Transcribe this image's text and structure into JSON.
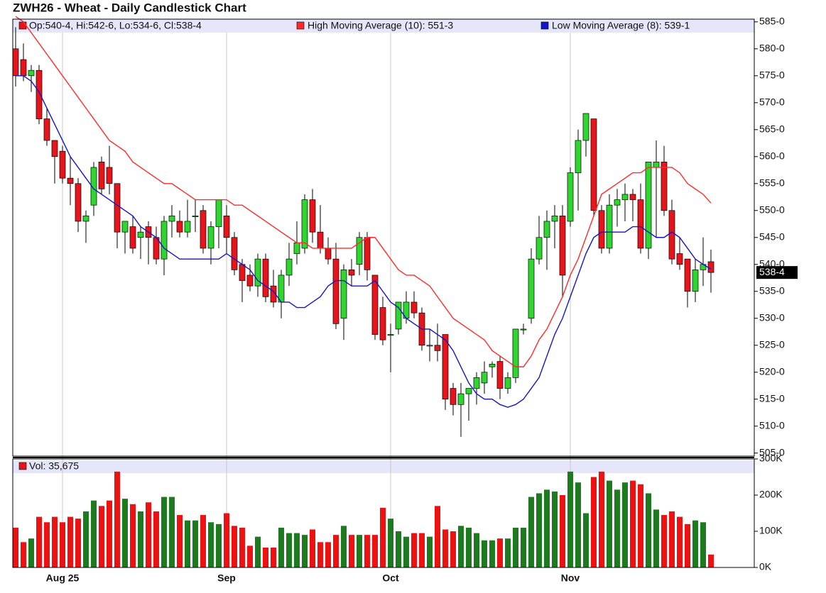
{
  "chart_data": {
    "type": "candlestick",
    "title": "ZWH26 - Wheat - Daily Candlestick Chart",
    "ohlc_label": "Op:540-4, Hi:542-6, Lo:534-6, Cl:538-4",
    "last_label": "538-4",
    "categories": [
      null,
      null,
      null,
      null,
      null,
      null,
      "Aug 25",
      null,
      null,
      null,
      null,
      null,
      null,
      null,
      null,
      null,
      null,
      null,
      null,
      null,
      null,
      null,
      null,
      null,
      null,
      null,
      null,
      "Sep",
      null,
      null,
      null,
      null,
      null,
      null,
      null,
      null,
      null,
      null,
      null,
      null,
      null,
      null,
      null,
      null,
      null,
      null,
      null,
      null,
      "Oct",
      null,
      null,
      null,
      null,
      null,
      null,
      null,
      null,
      null,
      null,
      null,
      null,
      null,
      null,
      null,
      null,
      null,
      null,
      null,
      null,
      null,
      null,
      "Nov",
      null,
      null,
      null,
      null,
      null,
      null,
      null,
      null,
      null,
      null,
      null,
      null,
      null,
      null,
      null,
      null,
      null,
      null
    ],
    "open": [
      580,
      578,
      575,
      576,
      567,
      563,
      561,
      556,
      555,
      548,
      551,
      559,
      558,
      555,
      546,
      547,
      545,
      547,
      545,
      541,
      548,
      548,
      546,
      549,
      550,
      543,
      547,
      549,
      545,
      540,
      538,
      536,
      541,
      536,
      533,
      538,
      542,
      543,
      552,
      546,
      543,
      541,
      530,
      539,
      540,
      545,
      538,
      532,
      527,
      528,
      530,
      533,
      531,
      525,
      525,
      527,
      517,
      514,
      516,
      517,
      518,
      521,
      522,
      517,
      519,
      528,
      530,
      541,
      545,
      548,
      549,
      548,
      557,
      563,
      567,
      550,
      543,
      551,
      552,
      553,
      552,
      543,
      558,
      559,
      550,
      542,
      541,
      535,
      539,
      540.5
    ],
    "high": [
      584,
      581,
      577,
      577,
      569,
      563,
      562,
      560,
      556,
      550,
      559,
      560,
      562,
      555,
      548,
      549,
      547,
      548,
      547,
      549,
      551,
      550,
      552,
      552,
      551,
      548,
      552,
      551,
      546,
      541,
      540,
      542,
      542,
      539,
      539,
      544,
      548,
      553,
      554,
      551,
      545,
      544,
      540,
      541,
      546,
      546,
      538,
      534,
      529,
      533,
      535,
      535,
      532,
      528,
      529,
      527,
      518,
      518,
      517,
      520,
      522,
      522,
      523,
      520,
      528,
      529,
      543,
      549,
      550,
      551,
      551,
      558,
      565,
      568,
      567,
      551,
      553,
      554,
      555,
      554,
      555,
      559,
      563,
      562,
      552,
      545,
      541,
      541,
      545,
      542.75
    ],
    "low": [
      573,
      574,
      572,
      566,
      562,
      555,
      555,
      551,
      546,
      544,
      549,
      553,
      553,
      543,
      542,
      542,
      541,
      540,
      540,
      538,
      545,
      545,
      545,
      546,
      542,
      540,
      543,
      542,
      538,
      533,
      535,
      534,
      533,
      532,
      530,
      536,
      540,
      542,
      544,
      542,
      540,
      528,
      526,
      536,
      538,
      537,
      526,
      525,
      520,
      527,
      529,
      530,
      524,
      522,
      522,
      513,
      512,
      508,
      511,
      514,
      516,
      519,
      515,
      516,
      518,
      527,
      529,
      540,
      539,
      543,
      534,
      547,
      550,
      560,
      549,
      542,
      542,
      547,
      548,
      548,
      542,
      541,
      545,
      549,
      540,
      539,
      532,
      533,
      536,
      534.75
    ],
    "close": [
      575,
      575,
      576,
      567,
      563,
      560,
      556,
      555,
      548,
      549,
      558,
      554,
      555,
      546,
      548,
      543,
      546,
      545,
      541,
      548,
      549,
      546,
      548,
      549,
      543,
      547,
      552,
      545,
      539,
      537,
      536,
      541,
      534,
      533,
      538,
      541,
      544,
      552,
      546,
      543,
      541,
      529,
      539,
      538,
      545,
      539,
      527,
      526,
      527,
      533,
      533,
      531,
      525,
      525,
      524,
      515,
      514,
      516,
      517,
      519,
      520,
      521.5,
      517,
      519,
      528,
      528,
      541,
      545,
      548,
      549,
      538,
      557,
      563,
      568,
      550,
      543,
      551,
      552,
      553,
      552,
      543,
      559,
      559,
      550,
      541,
      540,
      535,
      539,
      540,
      538.5
    ],
    "up_color": "#2fd62f",
    "down_color": "#e8141b",
    "series": [
      {
        "name": "High Moving Average (10): 551-3",
        "color": "#ff2a2a",
        "values": [
          586,
          585,
          583,
          581,
          579,
          577,
          575,
          573,
          571,
          569,
          567,
          565,
          563,
          562,
          561,
          559,
          558,
          557,
          556,
          555,
          555,
          554,
          553,
          552,
          552,
          552,
          552,
          552,
          551,
          551,
          550,
          549,
          548,
          547,
          546,
          545,
          544,
          544,
          543,
          543,
          543,
          543,
          543,
          543,
          544,
          545,
          545,
          543,
          541,
          539,
          538,
          538,
          537,
          536,
          534,
          532,
          530,
          529,
          528,
          527,
          526,
          524,
          523,
          522,
          521,
          521,
          523,
          526,
          528,
          531,
          534,
          538,
          541,
          545,
          549,
          553,
          554,
          555,
          556,
          557,
          557,
          558,
          558,
          558,
          558,
          557,
          555,
          554,
          553,
          551.375
        ]
      },
      {
        "name": "Low Moving Average (8): 539-1",
        "color": "#1414c8",
        "values": [
          575,
          575,
          574,
          572,
          569,
          566,
          563,
          560,
          558,
          556,
          554,
          553,
          552,
          551,
          550,
          549,
          547,
          546,
          545,
          543,
          542,
          541,
          541,
          541,
          541,
          541,
          541,
          542,
          541,
          540,
          539,
          537,
          536,
          535,
          533,
          533,
          532,
          532,
          533,
          534,
          536,
          537,
          537,
          536,
          536,
          536,
          537,
          535,
          533,
          532,
          530,
          529,
          528,
          528,
          527,
          526,
          524,
          521,
          518,
          516,
          515,
          515,
          514,
          513.5,
          514,
          515,
          517,
          519,
          523,
          527,
          530,
          534,
          538,
          542,
          545,
          546,
          546,
          546,
          546,
          547,
          547,
          546,
          545,
          545,
          546,
          545,
          543,
          541,
          540,
          539.125
        ]
      }
    ],
    "ylim": [
      504.7,
      585.5
    ],
    "yticks": [
      {
        "value": 505,
        "label": "505-0"
      },
      {
        "value": 510,
        "label": "510-0"
      },
      {
        "value": 515,
        "label": "515-0"
      },
      {
        "value": 520,
        "label": "520-0"
      },
      {
        "value": 525,
        "label": "525-0"
      },
      {
        "value": 530,
        "label": "530-0"
      },
      {
        "value": 535,
        "label": "535-0"
      },
      {
        "value": 540,
        "label": "540-0"
      },
      {
        "value": 545,
        "label": "545-0"
      },
      {
        "value": 550,
        "label": "550-0"
      },
      {
        "value": 555,
        "label": "555-0"
      },
      {
        "value": 560,
        "label": "560-0"
      },
      {
        "value": 565,
        "label": "565-0"
      },
      {
        "value": 570,
        "label": "570-0"
      },
      {
        "value": 575,
        "label": "575-0"
      },
      {
        "value": 580,
        "label": "580-0"
      },
      {
        "value": 585,
        "label": "585-0"
      }
    ],
    "volume": {
      "label": "Vol: 35,675",
      "up_color": "#1e7a1e",
      "down_color": "#ee1111",
      "values": [
        110000,
        70000,
        80000,
        140000,
        125000,
        140000,
        125000,
        140000,
        135000,
        155000,
        185000,
        170000,
        185000,
        265000,
        190000,
        175000,
        155000,
        180000,
        155000,
        195000,
        195000,
        145000,
        130000,
        130000,
        145000,
        125000,
        120000,
        150000,
        115000,
        110000,
        60000,
        85000,
        55000,
        55000,
        110000,
        95000,
        95000,
        90000,
        105000,
        70000,
        70000,
        90000,
        115000,
        90000,
        90000,
        90000,
        90000,
        165000,
        135000,
        100000,
        85000,
        95000,
        95000,
        85000,
        170000,
        105000,
        100000,
        115000,
        110000,
        95000,
        75000,
        75000,
        80000,
        80000,
        110000,
        110000,
        195000,
        205000,
        215000,
        210000,
        200000,
        265000,
        235000,
        150000,
        250000,
        265000,
        240000,
        215000,
        235000,
        240000,
        230000,
        205000,
        160000,
        145000,
        155000,
        140000,
        120000,
        130000,
        125000,
        35675
      ],
      "ylim": [
        0,
        300000
      ],
      "yticks": [
        {
          "value": 0,
          "label": "0K"
        },
        {
          "value": 100000,
          "label": "100K"
        },
        {
          "value": 200000,
          "label": "200K"
        },
        {
          "value": 300000,
          "label": "300K"
        }
      ]
    }
  }
}
